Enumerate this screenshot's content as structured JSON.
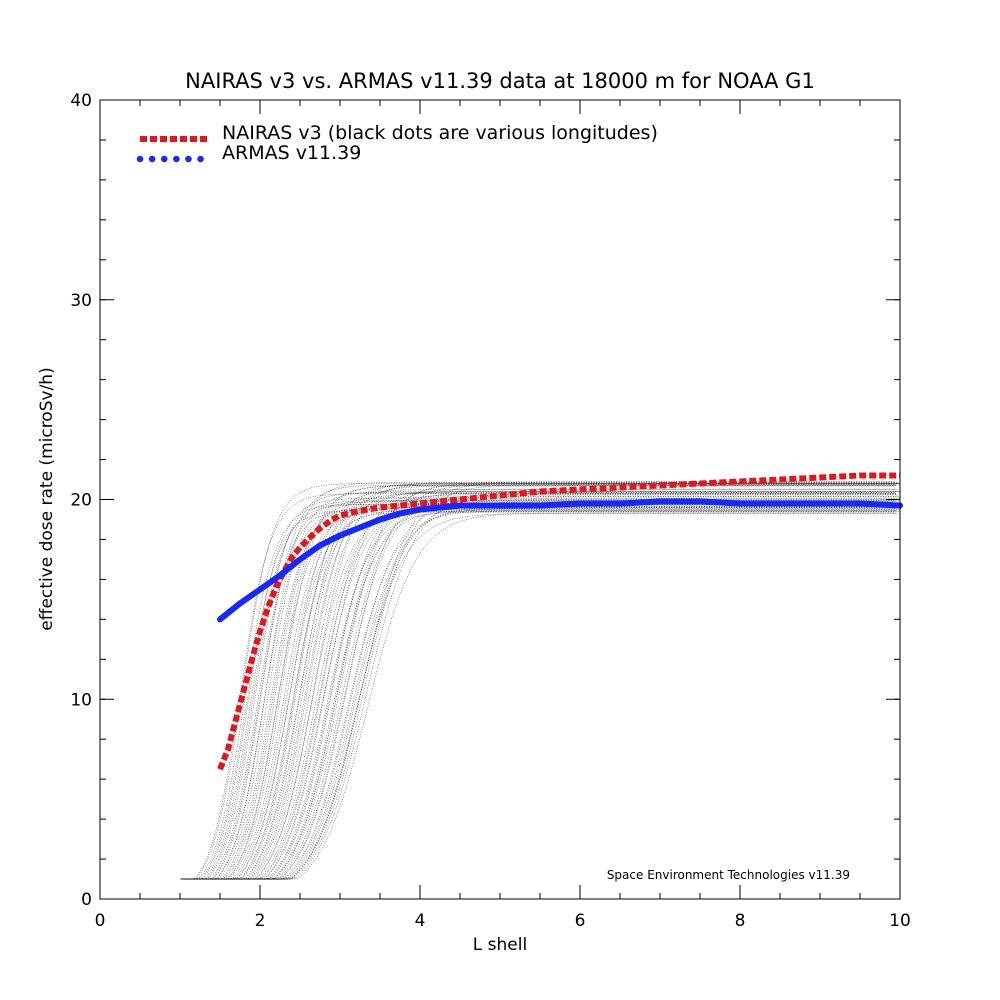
{
  "chart_data": {
    "type": "line",
    "title": "NAIRAS  v3 vs. ARMAS v11.39 data at 18000 m for NOAA G1",
    "xlabel": "L shell",
    "ylabel": "effective dose rate (microSv/h)",
    "xlim": [
      0,
      10
    ],
    "ylim": [
      0,
      40
    ],
    "x_ticks": [
      0,
      2,
      4,
      6,
      8,
      10
    ],
    "y_ticks": [
      0,
      10,
      20,
      30,
      40
    ],
    "x_tick_labels": [
      "0",
      "2",
      "4",
      "6",
      "8",
      "10"
    ],
    "y_tick_labels": [
      "0",
      "10",
      "20",
      "30",
      "40"
    ],
    "grid": false,
    "legend_position": "top-left",
    "series": [
      {
        "name": "NAIRAS v3 (black dots are various longitudes)",
        "color": "#e8141c",
        "style": "dashed",
        "x": [
          1.5,
          1.6,
          1.7,
          1.8,
          1.9,
          2.0,
          2.1,
          2.2,
          2.3,
          2.4,
          2.5,
          2.6,
          2.7,
          2.8,
          2.9,
          3.0,
          3.2,
          3.5,
          4.0,
          4.5,
          5.0,
          5.5,
          6.0,
          6.5,
          7.0,
          7.5,
          8.0,
          8.5,
          9.0,
          9.5,
          10.0
        ],
        "y": [
          6.5,
          7.5,
          9.0,
          10.5,
          12.0,
          13.4,
          14.6,
          15.6,
          16.4,
          17.1,
          17.6,
          18.0,
          18.4,
          18.7,
          19.0,
          19.2,
          19.4,
          19.6,
          19.8,
          20.0,
          20.2,
          20.4,
          20.5,
          20.6,
          20.7,
          20.8,
          20.9,
          21.0,
          21.1,
          21.2,
          21.2
        ]
      },
      {
        "name": "ARMAS v11.39",
        "color": "#1428ff",
        "style": "solid",
        "x": [
          1.5,
          1.75,
          2.0,
          2.25,
          2.5,
          2.75,
          3.0,
          3.25,
          3.5,
          3.75,
          4.0,
          4.5,
          5.0,
          5.5,
          6.0,
          6.5,
          7.0,
          7.5,
          8.0,
          8.5,
          9.0,
          9.5,
          10.0
        ],
        "y": [
          14.0,
          14.8,
          15.5,
          16.2,
          17.0,
          17.7,
          18.2,
          18.6,
          19.0,
          19.3,
          19.5,
          19.7,
          19.7,
          19.7,
          19.8,
          19.8,
          19.9,
          19.9,
          19.8,
          19.8,
          19.8,
          19.8,
          19.7
        ]
      }
    ],
    "background_traces": {
      "color": "#000000",
      "description_count": 60
    },
    "annotation": "Space Environment Technologies v11.39"
  }
}
